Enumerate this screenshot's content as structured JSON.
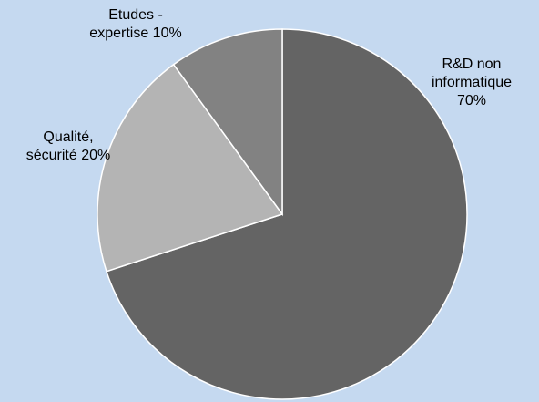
{
  "chart_data": {
    "type": "pie",
    "slices": [
      {
        "label_lines": [
          "R&D non",
          "informatique",
          "70%"
        ],
        "category": "R&D non informatique",
        "value": 70,
        "color": "#646464"
      },
      {
        "label_lines": [
          "Qualité,",
          "sécurité 20%"
        ],
        "category": "Qualité, sécurité",
        "value": 20,
        "color": "#b4b4b4"
      },
      {
        "label_lines": [
          "Etudes -",
          "expertise 10%"
        ],
        "category": "Etudes - expertise",
        "value": 10,
        "color": "#828282"
      }
    ],
    "legend": "none"
  }
}
